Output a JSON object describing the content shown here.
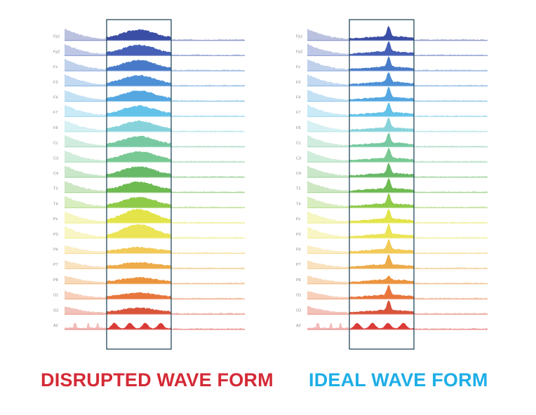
{
  "channels": [
    "Fp1",
    "Fp2",
    "Fz",
    "F3",
    "F4",
    "F7",
    "F8",
    "Cz",
    "C3",
    "C4",
    "T3",
    "T4",
    "Pz",
    "P3",
    "P4",
    "P7",
    "P8",
    "O1",
    "O2",
    "A2"
  ],
  "channel_colors": [
    "#2a3f9e",
    "#3553b0",
    "#3a6fc4",
    "#3f88d2",
    "#46a0de",
    "#56bde6",
    "#7ecfd8",
    "#6cc49a",
    "#6cc48a",
    "#5ab35a",
    "#62b543",
    "#86c63a",
    "#dfe23a",
    "#e9e248",
    "#f1c64a",
    "#eca43a",
    "#ea8a2c",
    "#e66a2c",
    "#d5452a",
    "#d62a25"
  ],
  "panels": [
    {
      "id": "disrupted",
      "caption": "DISRUPTED WAVE FORM",
      "caption_color": "#d42a36",
      "shape": "broad"
    },
    {
      "id": "ideal",
      "caption": "IDEAL WAVE FORM",
      "caption_color": "#1eaee6",
      "shape": "peak"
    }
  ],
  "frame_color": "#23495a"
}
